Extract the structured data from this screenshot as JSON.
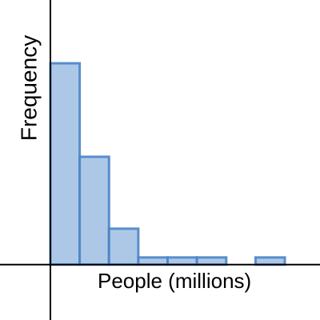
{
  "chart_data": {
    "type": "histogram",
    "x_label": "People (millions)",
    "y_label": "Frequency",
    "bins": [
      0,
      5,
      10,
      15,
      20,
      25,
      30,
      35,
      40
    ],
    "counts": [
      28,
      15,
      5,
      1,
      1,
      1,
      0,
      1
    ],
    "color": "#a9c5e6",
    "edge_color": "#4a84c6",
    "xlim": [
      -8.6,
      46
    ],
    "ylim": [
      -7.7,
      36.8
    ]
  }
}
